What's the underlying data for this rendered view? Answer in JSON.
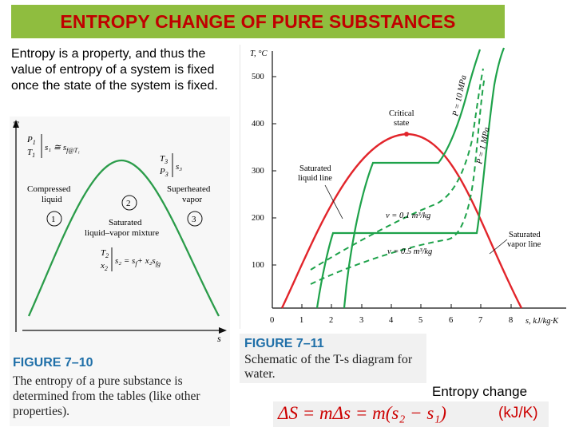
{
  "title": "ENTROPY CHANGE OF PURE SUBSTANCES",
  "intro_text": "Entropy is a property, and thus the value of entropy of a system is fixed once the state of the system is fixed.",
  "figure_7_10": {
    "axis_y": "T",
    "axis_x": "s",
    "state1_vars": [
      "P",
      "1",
      "T",
      "1"
    ],
    "state1_eq": "s₁ ≅ s",
    "state1_sub": "f@T₁",
    "compressed": [
      "Compressed",
      "liquid"
    ],
    "state3_vars": [
      "T",
      "3",
      "P",
      "3"
    ],
    "state3_eq": "s₃",
    "superheated": [
      "Superheated",
      "vapor"
    ],
    "saturated": [
      "Saturated",
      "liquid–vapor mixture"
    ],
    "state2_vars": [
      "T",
      "2",
      "x",
      "2"
    ],
    "state2_eq": "s₂ = s",
    "state2_eq2": "+ x₂s",
    "sub_f": "f",
    "sub_fg": "fg",
    "marker_1": "1",
    "marker_2": "2",
    "marker_3": "3",
    "caption_title": "FIGURE 7–10",
    "caption_text": "The entropy of a pure substance is determined from the tables (like other properties)."
  },
  "figure_7_11": {
    "axis_y": "T, °C",
    "axis_x": "s, kJ/kg·K",
    "critical": [
      "Critical",
      "state"
    ],
    "sat_liquid": [
      "Saturated",
      "liquid line"
    ],
    "sat_vapor": [
      "Saturated",
      "vapor line"
    ],
    "p_high": "P = 10 MPa",
    "p_low": "P = 1 MPa",
    "v_small": "v = 0.1 m³/kg",
    "v_large": "v = 0.5 m³/kg",
    "y_ticks": [
      "500",
      "400",
      "300",
      "200",
      "100"
    ],
    "x_ticks": [
      "0",
      "1",
      "2",
      "3",
      "4",
      "5",
      "6",
      "7",
      "8"
    ],
    "caption_title": "FIGURE 7–11",
    "caption_text": "Schematic of the T-s diagram for water."
  },
  "entropy_change_label": "Entropy change",
  "formula_text": "ΔS = mΔs = m(s₂ − s₁)",
  "formula_units": "(kJ/K)",
  "colors": {
    "title_bg": "#8fbd3f",
    "title_text": "#c00000",
    "dome": "#e2252b",
    "isobar": "#1ea24a",
    "formula": "#cc0000"
  }
}
